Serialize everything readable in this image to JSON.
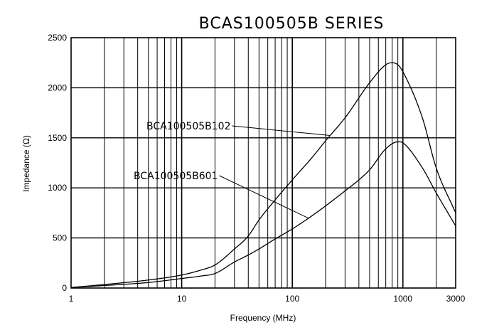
{
  "chart_data": {
    "type": "line",
    "title": "BCAS100505B SERIES",
    "xlabel": "Frequency (MHz)",
    "ylabel": "Impedance (Ω)",
    "x_scale": "log",
    "xlim": [
      1,
      3000
    ],
    "ylim": [
      0,
      2500
    ],
    "x_ticks": [
      1,
      10,
      100,
      1000,
      3000
    ],
    "x_tick_labels": [
      "1",
      "10",
      "100",
      "1000",
      "3000"
    ],
    "y_ticks": [
      0,
      500,
      1000,
      1500,
      2000,
      2500
    ],
    "y_tick_labels": [
      "0",
      "500",
      "1000",
      "1500",
      "2000",
      "2500"
    ],
    "grid": true,
    "legend": "none",
    "series": [
      {
        "name": "BCA100505B102",
        "x": [
          1,
          2,
          5,
          10,
          15,
          20,
          30,
          40,
          50,
          70,
          100,
          150,
          200,
          300,
          500,
          700,
          800,
          900,
          1000,
          1500,
          2000,
          3000
        ],
        "y": [
          5,
          35,
          80,
          130,
          180,
          230,
          390,
          520,
          680,
          880,
          1080,
          1300,
          1470,
          1700,
          2050,
          2230,
          2250,
          2230,
          2160,
          1700,
          1200,
          750
        ]
      },
      {
        "name": "BCA100505B601",
        "x": [
          1,
          2,
          5,
          10,
          15,
          20,
          30,
          40,
          50,
          70,
          100,
          150,
          200,
          300,
          400,
          500,
          700,
          900,
          1000,
          1500,
          2000,
          3000
        ],
        "y": [
          5,
          25,
          55,
          95,
          120,
          145,
          260,
          330,
          390,
          490,
          590,
          720,
          820,
          970,
          1080,
          1180,
          1390,
          1460,
          1450,
          1200,
          950,
          620
        ]
      }
    ],
    "annotations": [
      {
        "text": "BCA100505B102",
        "series": 0,
        "x": 220
      },
      {
        "text": "BCA100505B601",
        "series": 1,
        "x": 140
      }
    ]
  }
}
